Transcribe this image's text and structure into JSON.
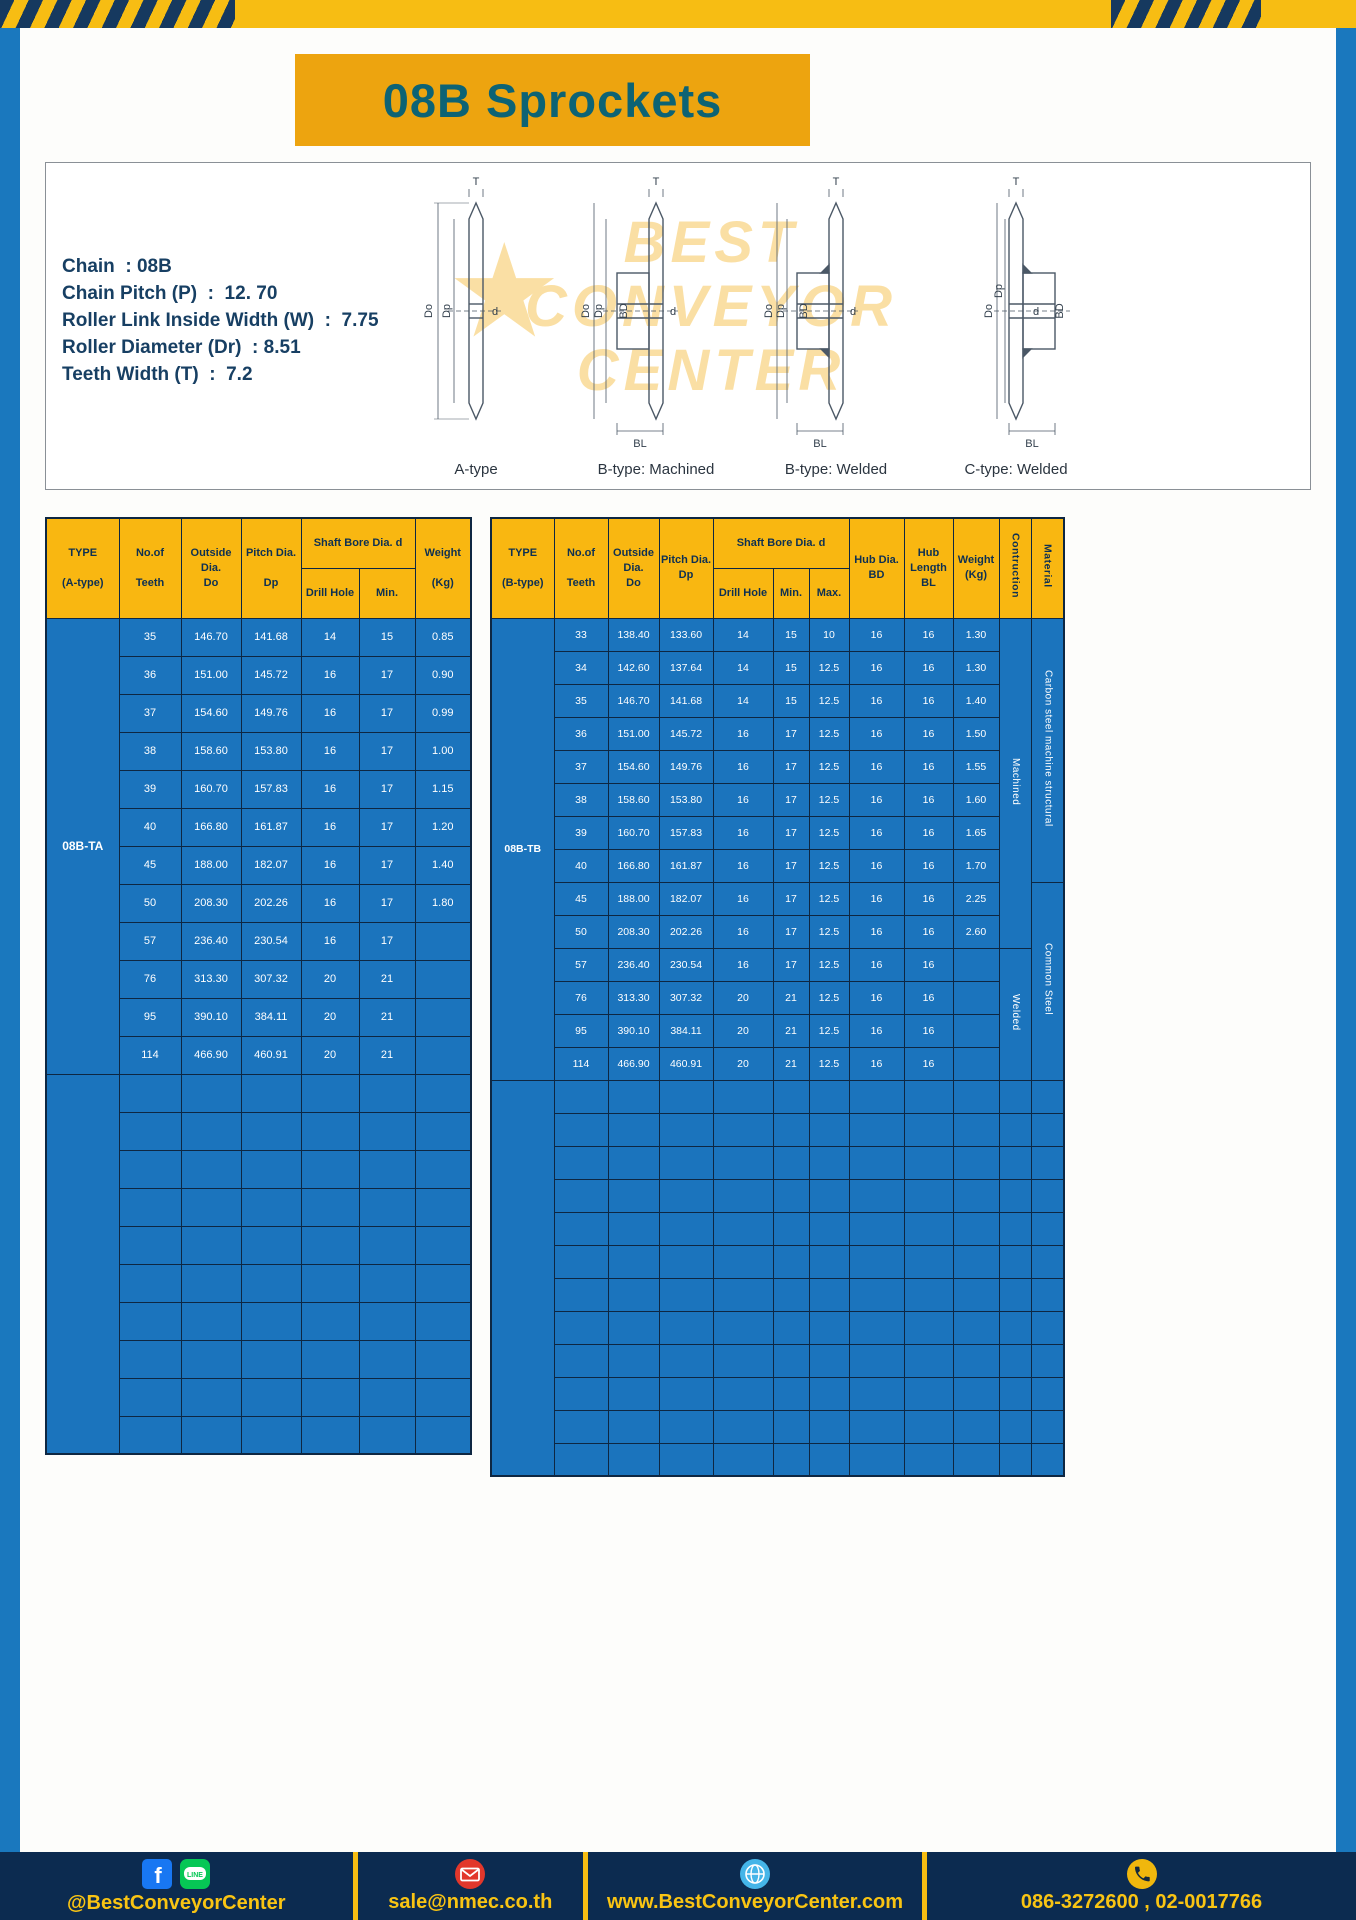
{
  "page": {
    "title": "08B Sprockets"
  },
  "specs": [
    "Chain  : 08B",
    "Chain Pitch (P)  :  12. 70",
    "Roller Link Inside Width (W)  :  7.75",
    "Roller Diameter (Dr)  : 8.51",
    "Teeth Width (T)  :  7.2"
  ],
  "diagram": {
    "watermark": [
      "BEST",
      "CONVEYOR",
      "CENTER"
    ],
    "dims": {
      "T": "T",
      "Do": "Do",
      "Dp": "Dp",
      "d": "d",
      "BD": "BD",
      "BL": "BL"
    },
    "type_labels": [
      "A-type",
      "B-type: Machined",
      "B-type: Welded",
      "C-type: Welded"
    ]
  },
  "table_a": {
    "headers": {
      "type": "TYPE\n\n(A-type)",
      "teeth": "No.of\n\nTeeth",
      "outside": "Outside\nDia.\nDo",
      "pitch": "Pitch Dia.\n\nDp",
      "shaft_bore": "Shaft Bore Dia. d",
      "drill": "Drill Hole",
      "min": "Min.",
      "weight": "Weight\n\n(Kg)"
    },
    "type_value": "08B-TA",
    "rows": [
      [
        "35",
        "146.70",
        "141.68",
        "14",
        "15",
        "0.85"
      ],
      [
        "36",
        "151.00",
        "145.72",
        "16",
        "17",
        "0.90"
      ],
      [
        "37",
        "154.60",
        "149.76",
        "16",
        "17",
        "0.99"
      ],
      [
        "38",
        "158.60",
        "153.80",
        "16",
        "17",
        "1.00"
      ],
      [
        "39",
        "160.70",
        "157.83",
        "16",
        "17",
        "1.15"
      ],
      [
        "40",
        "166.80",
        "161.87",
        "16",
        "17",
        "1.20"
      ],
      [
        "45",
        "188.00",
        "182.07",
        "16",
        "17",
        "1.40"
      ],
      [
        "50",
        "208.30",
        "202.26",
        "16",
        "17",
        "1.80"
      ],
      [
        "57",
        "236.40",
        "230.54",
        "16",
        "17",
        ""
      ],
      [
        "76",
        "313.30",
        "307.32",
        "20",
        "21",
        ""
      ],
      [
        "95",
        "390.10",
        "384.11",
        "20",
        "21",
        ""
      ],
      [
        "114",
        "466.90",
        "460.91",
        "20",
        "21",
        ""
      ]
    ],
    "empty_rows": 10
  },
  "table_b": {
    "headers": {
      "type": "TYPE\n\n(B-type)",
      "teeth": "No.of\n\nTeeth",
      "outside": "Outside\nDia.\nDo",
      "pitch": "Pitch Dia.\nDp",
      "shaft_bore": "Shaft Bore Dia. d",
      "drill": "Drill Hole",
      "min": "Min.",
      "max": "Max.",
      "hub_dia": "Hub Dia.\nBD",
      "hub_len": "Hub\nLength\nBL",
      "weight": "Weight\n(Kg)",
      "construction": "Contruction",
      "material": "Material"
    },
    "type_value": "08B-TB",
    "rows": [
      [
        "33",
        "138.40",
        "133.60",
        "14",
        "15",
        "10",
        "16",
        "16",
        "1.30"
      ],
      [
        "34",
        "142.60",
        "137.64",
        "14",
        "15",
        "12.5",
        "16",
        "16",
        "1.30"
      ],
      [
        "35",
        "146.70",
        "141.68",
        "14",
        "15",
        "12.5",
        "16",
        "16",
        "1.40"
      ],
      [
        "36",
        "151.00",
        "145.72",
        "16",
        "17",
        "12.5",
        "16",
        "16",
        "1.50"
      ],
      [
        "37",
        "154.60",
        "149.76",
        "16",
        "17",
        "12.5",
        "16",
        "16",
        "1.55"
      ],
      [
        "38",
        "158.60",
        "153.80",
        "16",
        "17",
        "12.5",
        "16",
        "16",
        "1.60"
      ],
      [
        "39",
        "160.70",
        "157.83",
        "16",
        "17",
        "12.5",
        "16",
        "16",
        "1.65"
      ],
      [
        "40",
        "166.80",
        "161.87",
        "16",
        "17",
        "12.5",
        "16",
        "16",
        "1.70"
      ],
      [
        "45",
        "188.00",
        "182.07",
        "16",
        "17",
        "12.5",
        "16",
        "16",
        "2.25"
      ],
      [
        "50",
        "208.30",
        "202.26",
        "16",
        "17",
        "12.5",
        "16",
        "16",
        "2.60"
      ],
      [
        "57",
        "236.40",
        "230.54",
        "16",
        "17",
        "12.5",
        "16",
        "16",
        ""
      ],
      [
        "76",
        "313.30",
        "307.32",
        "20",
        "21",
        "12.5",
        "16",
        "16",
        ""
      ],
      [
        "95",
        "390.10",
        "384.11",
        "20",
        "21",
        "12.5",
        "16",
        "16",
        ""
      ],
      [
        "114",
        "466.90",
        "460.91",
        "20",
        "21",
        "12.5",
        "16",
        "16",
        ""
      ]
    ],
    "construction_groups": [
      {
        "label": "Machined",
        "span": 10
      },
      {
        "label": "Welded",
        "span": 4
      }
    ],
    "material_groups": [
      {
        "label": "Carbon steel  machine  structural",
        "span": 8
      },
      {
        "label": "Common  Steel",
        "span": 6
      }
    ],
    "empty_rows": 12
  },
  "footer": {
    "handle": "@BestConveyorCenter",
    "email": "sale@nmec.co.th",
    "website": "www.BestConveyorCenter.com",
    "phone": "086-3272600 , 02-0017766"
  }
}
